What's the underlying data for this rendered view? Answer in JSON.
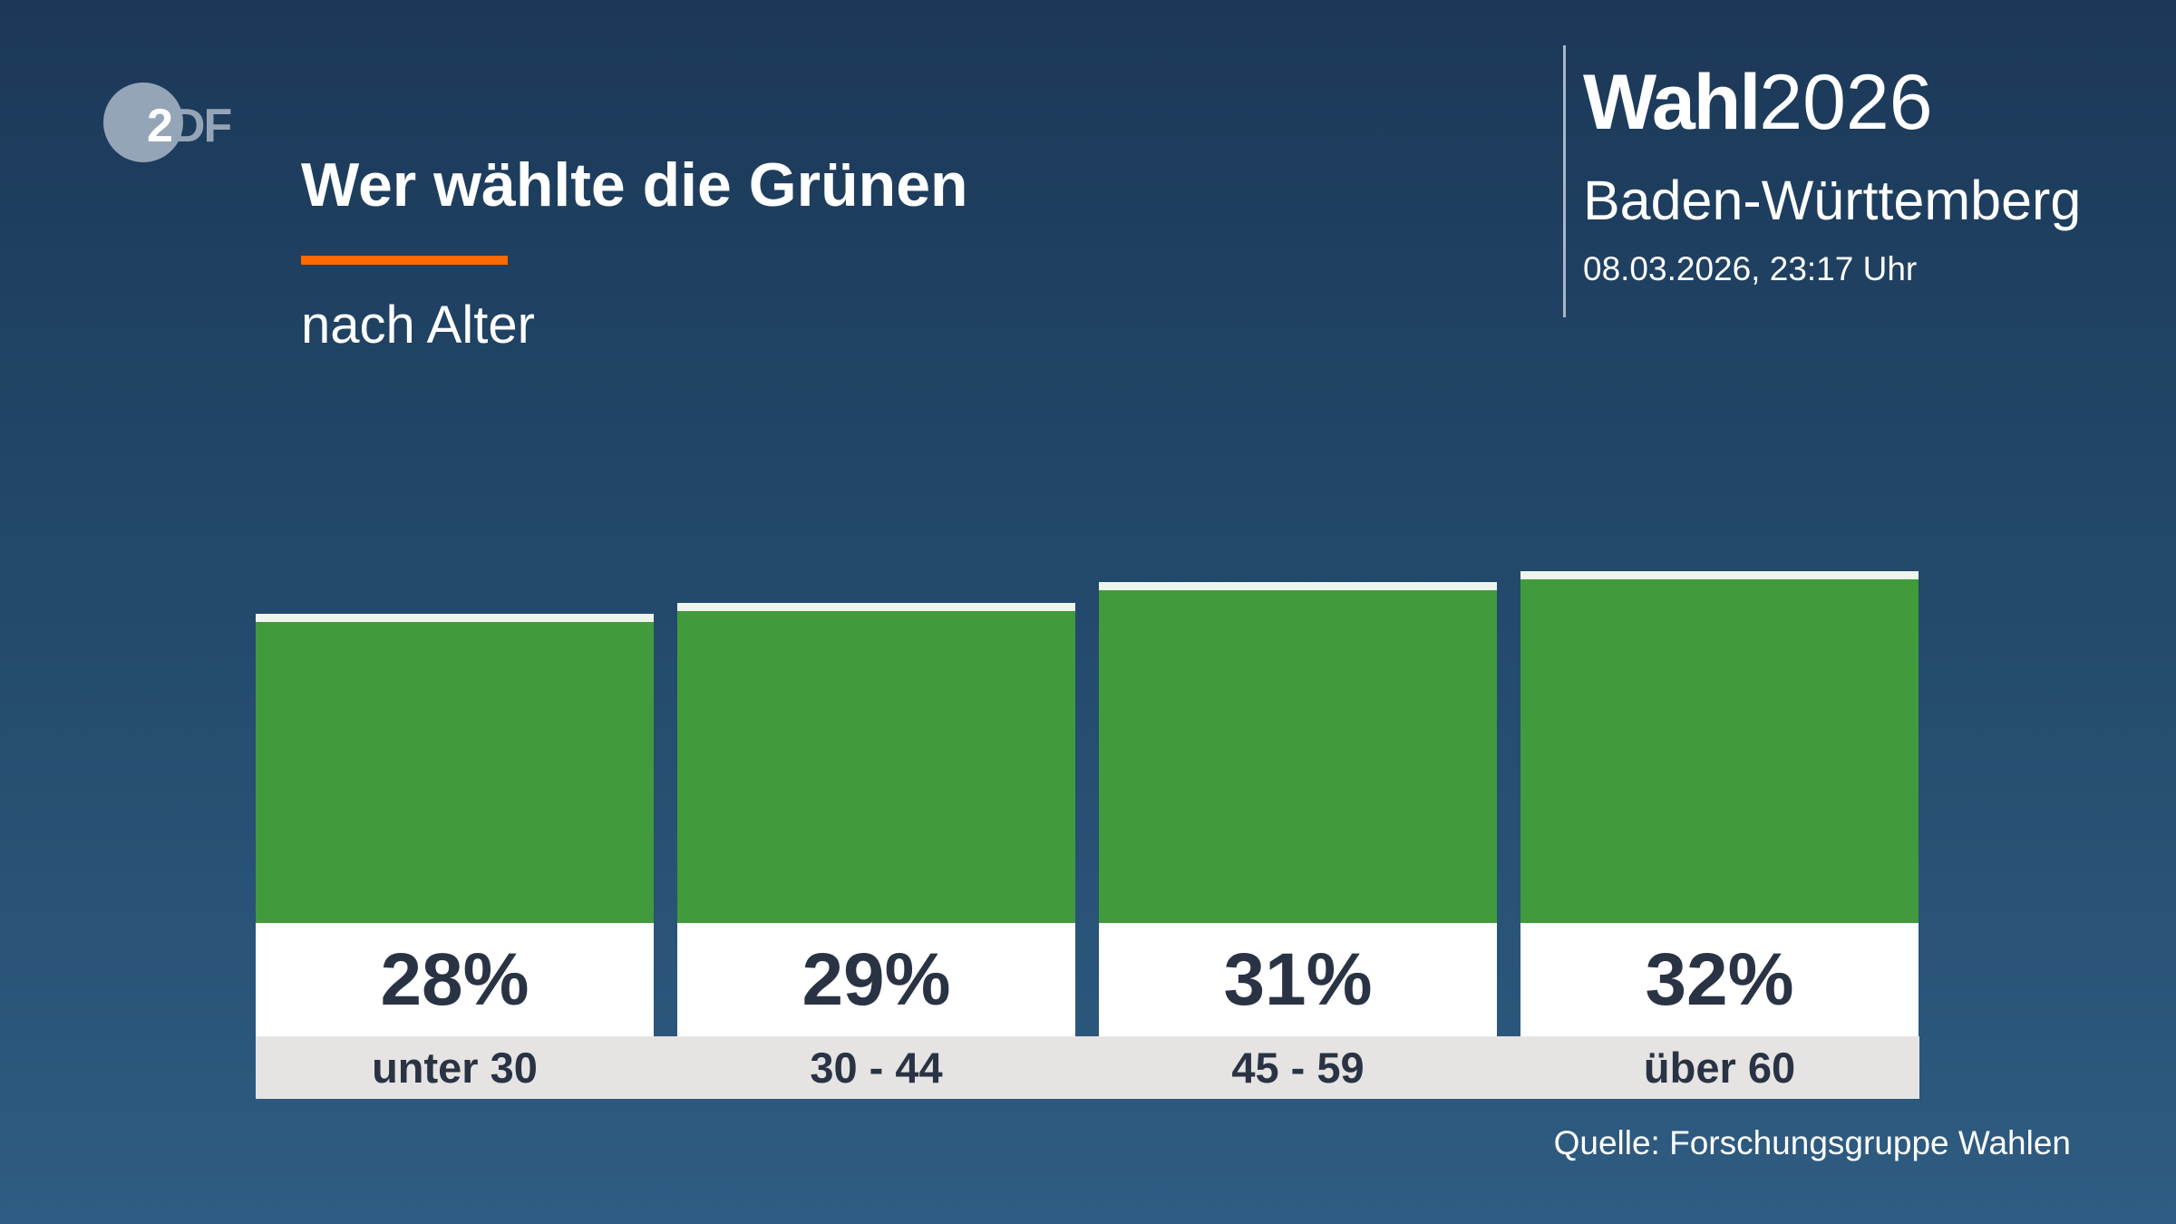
{
  "logo": {
    "text_2": "2",
    "text_df": "DF"
  },
  "header": {
    "title": "Wer wählte die Grünen",
    "subtitle": "nach Alter",
    "accent_color": "#ff6a00"
  },
  "brand": {
    "wahl": "Wahl",
    "year": "2026",
    "region": "Baden-Württemberg",
    "timestamp": "08.03.2026, 23:17 Uhr"
  },
  "source": "Quelle: Forschungsgruppe Wahlen",
  "chart_data": {
    "type": "bar",
    "title": "Wer wählte die Grünen",
    "subtitle": "nach Alter",
    "categories": [
      "unter 30",
      "30 - 44",
      "45 - 59",
      "über 60"
    ],
    "values": [
      28,
      29,
      31,
      32
    ],
    "value_labels": [
      "28%",
      "29%",
      "31%",
      "32%"
    ],
    "unit": "%",
    "bar_color": "#419a3c",
    "ylim": [
      0,
      100
    ],
    "grid": false
  }
}
